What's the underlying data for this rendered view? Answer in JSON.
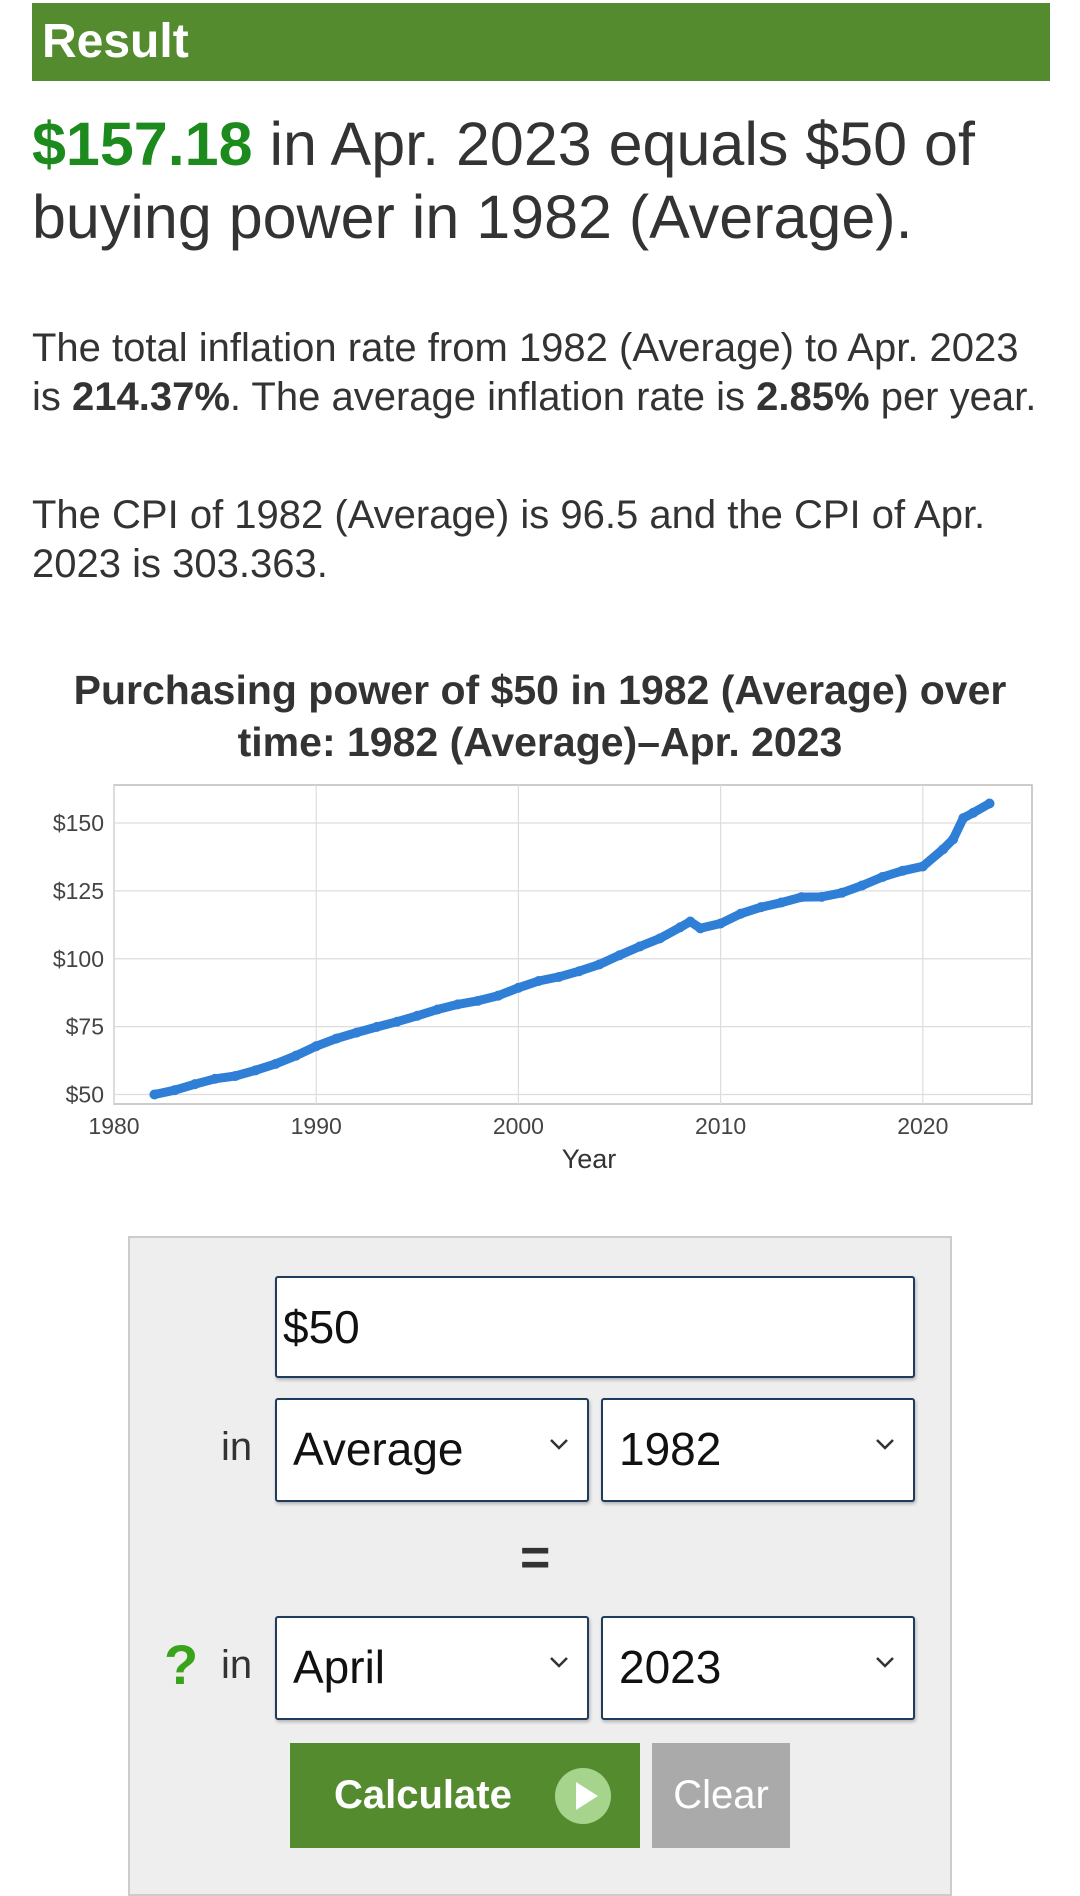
{
  "result": {
    "header": "Result",
    "amount": "$157.18",
    "headline_rest": " in Apr. 2023 equals $50 of buying power in 1982 (Average).",
    "p1_a": "The total inflation rate from 1982 (Average) to Apr. 2023 is ",
    "p1_b": "214.37%",
    "p1_c": ". The average inflation rate is ",
    "p1_d": "2.85%",
    "p1_e": " per year.",
    "p2": "The CPI of 1982 (Average) is 96.5 and the CPI of Apr. 2023 is 303.363."
  },
  "chart_title": "Purchasing power of $50 in 1982 (Average) over time: 1982 (Average)–Apr. 2023",
  "colors": {
    "header_green": "#558b2f",
    "amount_green": "#1d8a1d",
    "line_blue": "#2f7fd6",
    "clear_gray": "#aaaaaa"
  },
  "chart_data": {
    "type": "line",
    "title": "Purchasing power of $50 in 1982 (Average) over time: 1982 (Average)–Apr. 2023",
    "xlabel": "Year",
    "ylabel": "",
    "xlim": [
      1980,
      2025.4
    ],
    "ylim": [
      46.5,
      164
    ],
    "x_ticks": [
      1980,
      1990,
      2000,
      2010,
      2020
    ],
    "y_ticks": [
      50,
      75,
      100,
      125,
      150
    ],
    "y_tick_labels": [
      "$50",
      "$75",
      "$100",
      "$125",
      "$150"
    ],
    "grid": true,
    "series": [
      {
        "x": [
          1982,
          1983,
          1984,
          1985,
          1986,
          1987,
          1988,
          1989,
          1990,
          1991,
          1992,
          1993,
          1994,
          1995,
          1996,
          1997,
          1998,
          1999,
          2000,
          2001,
          2002,
          2003,
          2004,
          2005,
          2006,
          2007,
          2008,
          2008.5,
          2009,
          2010,
          2011,
          2012,
          2013,
          2014,
          2015,
          2016,
          2017,
          2018,
          2019,
          2020,
          2021,
          2021.5,
          2022,
          2022.5,
          2023.3
        ],
        "y": [
          50,
          51.6,
          53.8,
          55.8,
          56.8,
          58.9,
          61.3,
          64.3,
          67.8,
          70.6,
          72.8,
          74.9,
          76.8,
          79.0,
          81.3,
          83.2,
          84.5,
          86.4,
          89.3,
          91.8,
          93.3,
          95.4,
          97.9,
          101.3,
          104.5,
          107.5,
          111.6,
          113.7,
          111.2,
          113.0,
          116.6,
          119.0,
          120.7,
          122.7,
          122.8,
          124.3,
          127.0,
          130.1,
          132.4,
          134.0,
          140.3,
          144.0,
          151.8,
          153.8,
          157.18
        ]
      }
    ]
  },
  "form": {
    "amount_value": "$50",
    "in_label_1": "in",
    "from_month": "Average",
    "from_year": "1982",
    "equals": "=",
    "question": "?",
    "in_label_2": "in",
    "to_month": "April",
    "to_year": "2023",
    "calculate_label": "Calculate",
    "clear_label": "Clear"
  }
}
